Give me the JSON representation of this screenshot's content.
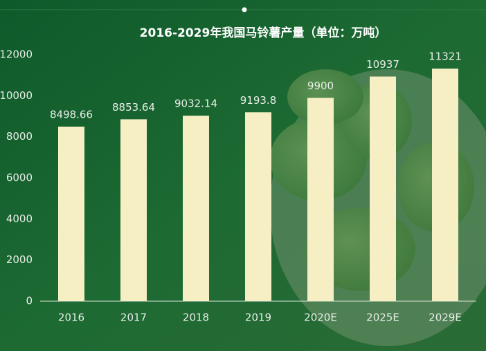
{
  "chart_data": {
    "type": "bar",
    "title": "2016-2029年我国马铃薯产量（单位：万吨）",
    "categories": [
      "2016",
      "2017",
      "2018",
      "2019",
      "2020E",
      "2025E",
      "2029E"
    ],
    "values": [
      8498.66,
      8853.64,
      9032.14,
      9193.8,
      9900,
      10937,
      11321
    ],
    "color": "#f6efc4",
    "ylim": [
      0,
      12000
    ],
    "yticks": [
      0,
      2000,
      4000,
      6000,
      8000,
      10000,
      12000
    ],
    "grid": false
  }
}
